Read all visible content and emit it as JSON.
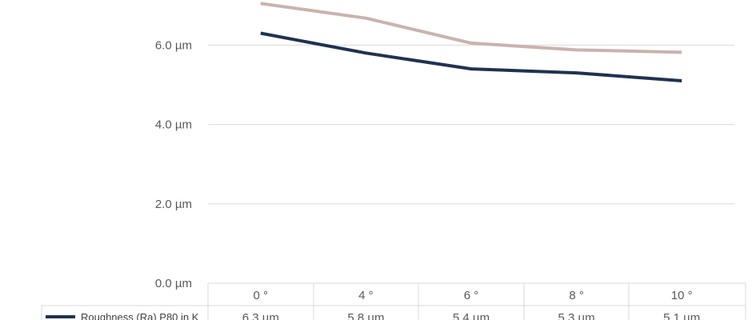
{
  "chart_data": {
    "type": "line",
    "categories": [
      "0 °",
      "4 °",
      "6 °",
      "8 °",
      "10 °"
    ],
    "ylim": [
      0,
      7
    ],
    "y_tick_labels": [
      "0.0 µm",
      "2.0 µm",
      "4.0 µm",
      "6.0 µm"
    ],
    "grid": true,
    "series": [
      {
        "name": "Roughness (Ra) P80 in K",
        "values": [
          6.3,
          5.8,
          5.4,
          5.3,
          5.1
        ],
        "value_labels": [
          "6.3 µm",
          "5.8 µm",
          "5.4 µm",
          "5.3 µm",
          "5.1 µm"
        ],
        "color": "#1f3251"
      },
      {
        "values": [
          7.05,
          6.68,
          6.05,
          5.88,
          5.82
        ],
        "color": "#c9b3ac"
      }
    ]
  }
}
